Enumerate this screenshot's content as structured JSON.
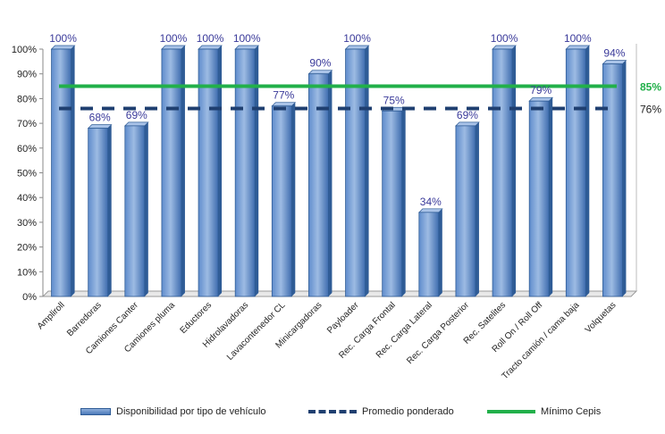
{
  "chart_data": {
    "type": "bar",
    "categories": [
      "Ampliroll",
      "Barredoras",
      "Camiones Canter",
      "Camiones pluma",
      "Eductores",
      "Hidrolavadoras",
      "Lavacontenedor CL",
      "Minicargadoras",
      "Payloader",
      "Rec. Carga Frontal",
      "Rec. Carga Lateral",
      "Rec. Carga Posterior",
      "Rec. Satelites",
      "Roll On / Roll Off",
      "Tracto camión / cama baja",
      "Volquetas"
    ],
    "series": [
      {
        "name": "Disponibilidad por tipo de vehículo",
        "values": [
          100,
          68,
          69,
          100,
          100,
          100,
          77,
          90,
          100,
          75,
          34,
          69,
          100,
          79,
          100,
          94
        ],
        "labels": [
          "100%",
          "68%",
          "69%",
          "100%",
          "100%",
          "100%",
          "77%",
          "90%",
          "100%",
          "75%",
          "34%",
          "69%",
          "100%",
          "79%",
          "100%",
          "94%"
        ]
      }
    ],
    "lines": [
      {
        "name": "Promedio ponderado",
        "value": 76,
        "label": "76%",
        "style": "dashed",
        "color": "#1f3f70"
      },
      {
        "name": "Mínimo Cepis",
        "value": 85,
        "label": "85%",
        "style": "solid",
        "color": "#22b04a"
      }
    ],
    "yticks": [
      "0%",
      "10%",
      "20%",
      "30%",
      "40%",
      "50%",
      "60%",
      "70%",
      "80%",
      "90%",
      "100%"
    ],
    "ylim": [
      0,
      100
    ],
    "legend_position": "bottom",
    "colors": {
      "bar_top": "#8fb0dc",
      "bar_bottom": "#4a78b8",
      "bar_edge": "#2f5c96",
      "data_label": "#3a3a9a"
    }
  },
  "legend": {
    "bars": "Disponibilidad por tipo de vehículo",
    "avg": "Promedio ponderado",
    "min": "Mínimo Cepis"
  }
}
